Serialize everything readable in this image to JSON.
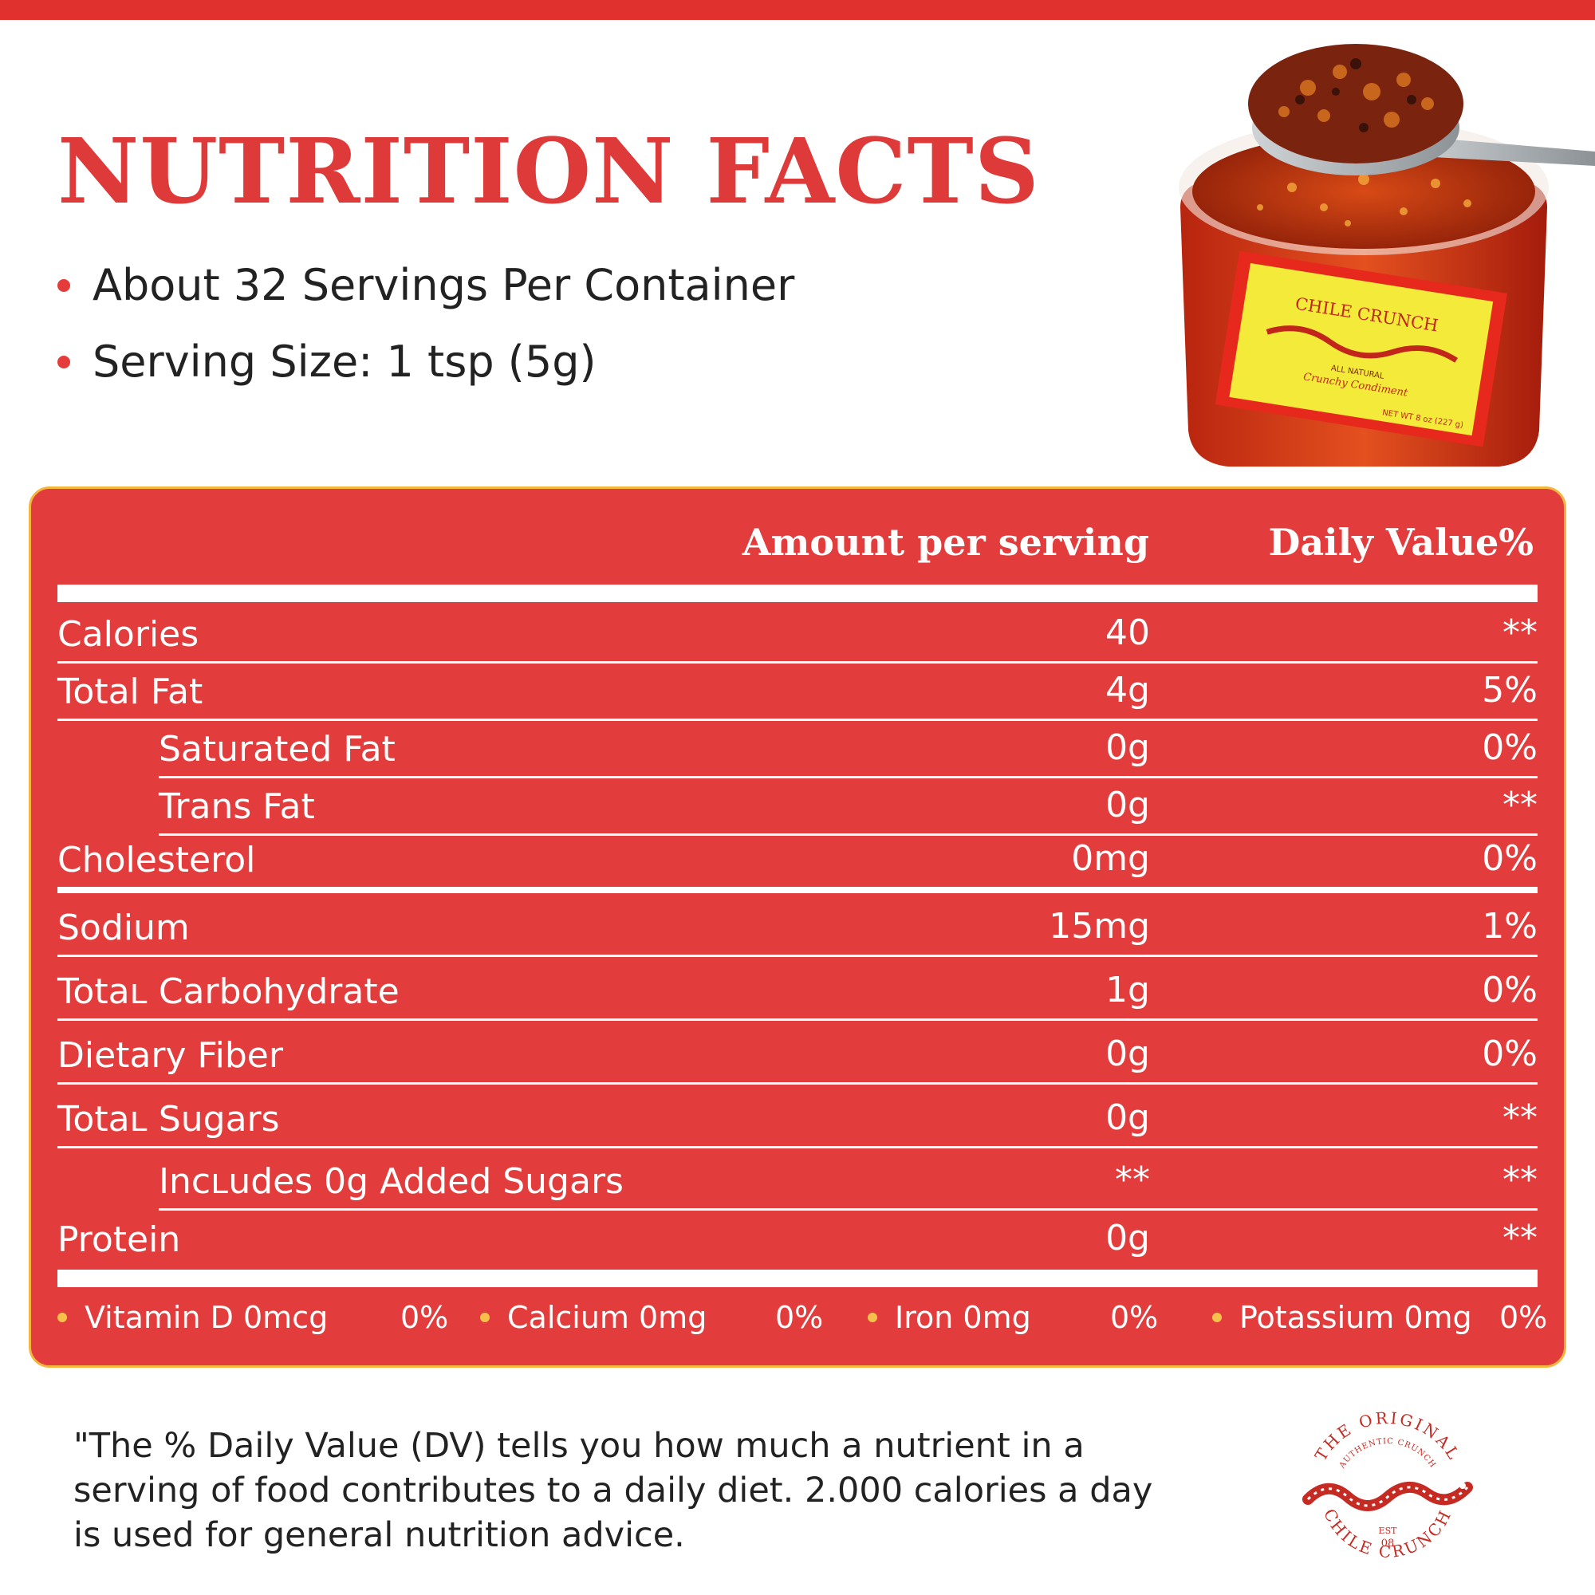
{
  "header": {
    "title": "NUTRITION FACTS",
    "servings_per_container": "About 32 Servings Per Container",
    "serving_size": "Serving Size: 1 tsp (5g)"
  },
  "jar_label": {
    "brand": "CHILE CRUNCH",
    "tagline_top": "ALL NATURAL",
    "tagline": "Crunchy Condiment",
    "net_weight": "NET WT 8 oz (227 g)"
  },
  "table": {
    "col_amount": "Amount per serving",
    "col_daily_value": "Daily Value%",
    "rows": [
      {
        "name": "Calories",
        "amount": "40",
        "dv": "**"
      },
      {
        "name": "Total Fat",
        "amount": "4g",
        "dv": "5%"
      },
      {
        "name": "Saturated Fat",
        "amount": "0g",
        "dv": "0%"
      },
      {
        "name": "Trans Fat",
        "amount": "0g",
        "dv": "**"
      },
      {
        "name": "Cholesterol",
        "amount": "0mg",
        "dv": "0%"
      },
      {
        "name": "Sodium",
        "amount": "15mg",
        "dv": "1%"
      },
      {
        "name": "Totaʟ Carbohydrate",
        "amount": "1g",
        "dv": "0%"
      },
      {
        "name": "Dietary Fiber",
        "amount": "0g",
        "dv": "0%"
      },
      {
        "name": "Totaʟ Sugars",
        "amount": "0g",
        "dv": "**"
      },
      {
        "name": "Incʟudes 0g Added Sugars",
        "amount": "**",
        "dv": "**"
      },
      {
        "name": "Protein",
        "amount": "0g",
        "dv": "**"
      }
    ],
    "vitamins": [
      {
        "name": "Vitamin D 0mcg",
        "dv": "0%"
      },
      {
        "name": "Calcium 0mg",
        "dv": "0%"
      },
      {
        "name": "Iron 0mg",
        "dv": "0%"
      },
      {
        "name": "Potassium 0mg",
        "dv": "0%"
      }
    ]
  },
  "footnote": "\"The % Daily Value (DV) tells you how much a nutrient in a serving of food contributes to a daily diet. 2.000 calories a day is used for general nutrition advice.",
  "logo": {
    "arc_top": "THE ORIGINAL",
    "arc_sub": "AUTHENTIC CRUNCH",
    "arc_bottom": "CHILE CRUNCH",
    "est": "EST",
    "est_year": "08"
  },
  "colors": {
    "brand_red": "#e23c3c",
    "panel_border": "#f4b63d",
    "vitamin_dot": "#f6c14a"
  }
}
